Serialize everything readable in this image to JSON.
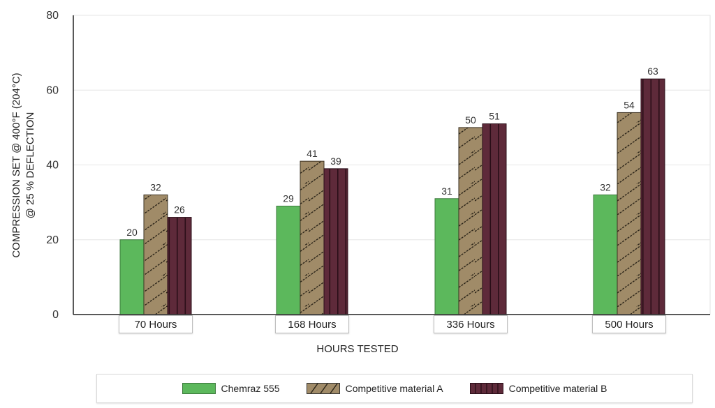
{
  "chart_data": {
    "type": "bar",
    "title": "",
    "xlabel": "HOURS TESTED",
    "ylabel": "COMPRESSION SET @ 400°F (204°C) @ 25 % DEFLECTION",
    "ylabel_lines": [
      "COMPRESSION SET @ 400°F (204°C)",
      "@ 25 % DEFLECTION"
    ],
    "ylim": [
      0,
      80
    ],
    "yticks": [
      0,
      20,
      40,
      60,
      80
    ],
    "grid": true,
    "legend_position": "bottom",
    "categories": [
      "70 Hours",
      "168 Hours",
      "336 Hours",
      "500 Hours"
    ],
    "series": [
      {
        "name": "Chemraz 555",
        "color": "#5cb85c",
        "pattern": "solid",
        "values": [
          20,
          29,
          31,
          32
        ]
      },
      {
        "name": "Competitive material A",
        "color": "#a08b68",
        "pattern": "diagonal-hatch",
        "values": [
          32,
          41,
          50,
          54
        ]
      },
      {
        "name": "Competitive material B",
        "color": "#5e2a3a",
        "pattern": "vertical-stripes",
        "values": [
          26,
          39,
          51,
          63
        ]
      }
    ],
    "data_labels": true
  },
  "axes": {
    "x_title": "HOURS TESTED",
    "y_title_line1": "COMPRESSION SET @ 400°F (204°C)",
    "y_title_line2": "@ 25 % DEFLECTION"
  },
  "legend": {
    "items": [
      {
        "label": "Chemraz 555"
      },
      {
        "label": "Competitive material A"
      },
      {
        "label": "Competitive material B"
      }
    ]
  }
}
